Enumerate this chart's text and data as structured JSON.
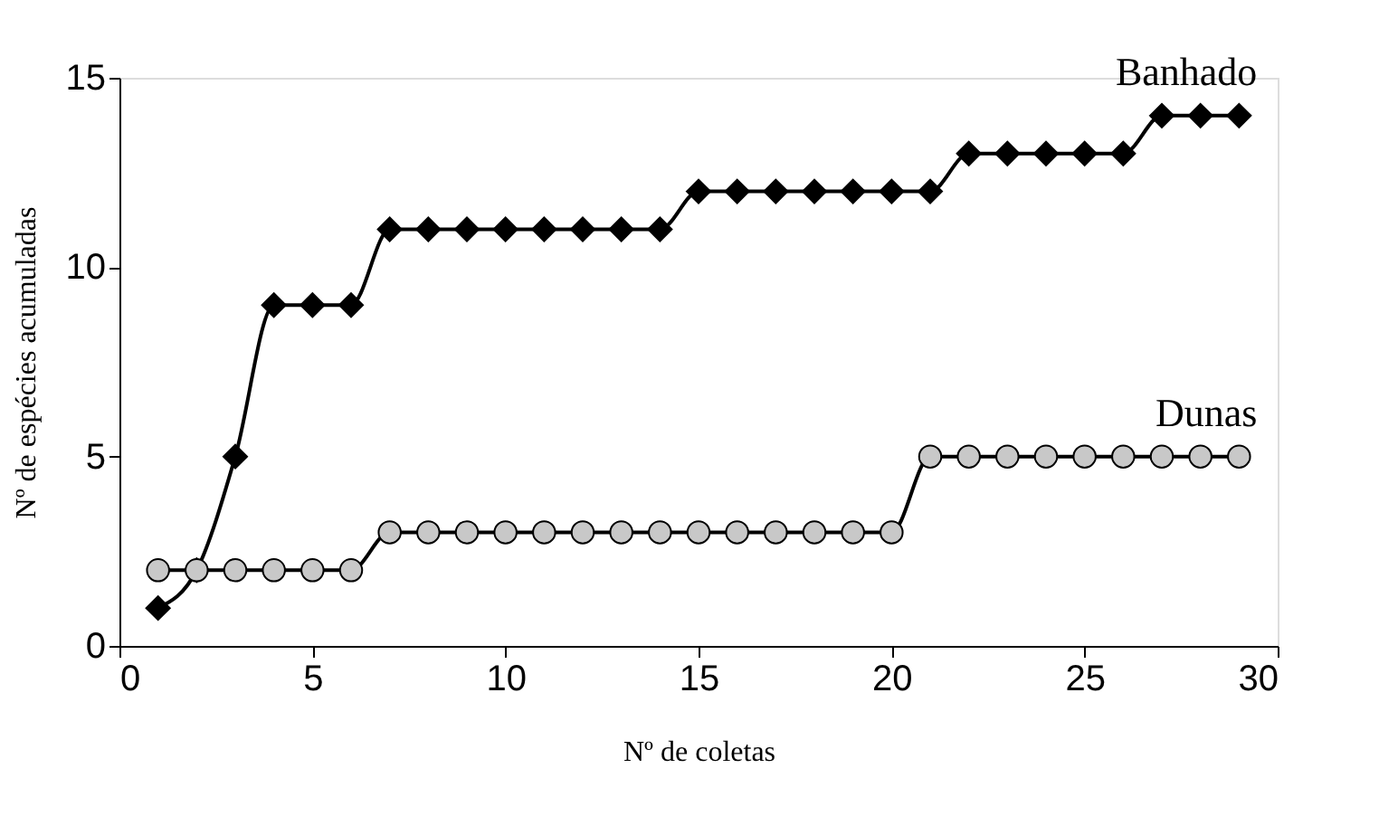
{
  "chart_data": {
    "type": "line",
    "xlabel": "Nº de coletas",
    "ylabel": "Nº de espécies acumuladas",
    "xlim": [
      0,
      30
    ],
    "xticks": [
      0,
      5,
      10,
      15,
      20,
      25,
      30
    ],
    "ylim": [
      0,
      15
    ],
    "yticks": [
      0,
      5,
      10,
      15
    ],
    "grid": false,
    "line_style": "solid",
    "x": [
      1,
      2,
      3,
      4,
      5,
      6,
      7,
      8,
      9,
      10,
      11,
      12,
      13,
      14,
      15,
      16,
      17,
      18,
      19,
      20,
      21,
      22,
      23,
      24,
      25,
      26,
      27,
      28,
      29
    ],
    "series": [
      {
        "name": "Banhado",
        "color": "#000000",
        "marker": "diamond",
        "values": [
          1,
          2,
          5,
          9,
          9,
          9,
          11,
          11,
          11,
          11,
          11,
          11,
          11,
          11,
          12,
          12,
          12,
          12,
          12,
          12,
          12,
          13,
          13,
          13,
          13,
          13,
          14,
          14,
          14
        ]
      },
      {
        "name": "Dunas",
        "color": "#c8c8c8",
        "marker": "circle",
        "values": [
          2,
          2,
          2,
          2,
          2,
          2,
          3,
          3,
          3,
          3,
          3,
          3,
          3,
          3,
          3,
          3,
          3,
          3,
          3,
          3,
          5,
          5,
          5,
          5,
          5,
          5,
          5,
          5,
          5
        ]
      }
    ]
  }
}
